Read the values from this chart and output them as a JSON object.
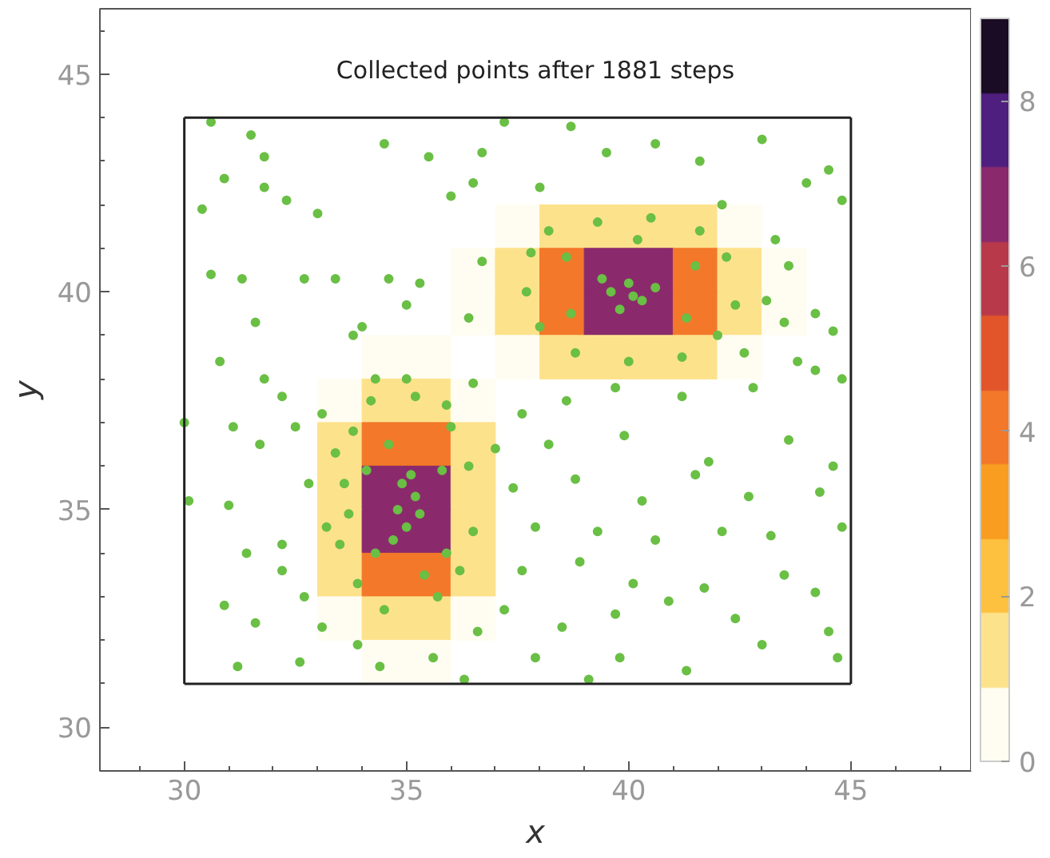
{
  "chart_data": {
    "type": "scatter",
    "title": "Collected points after 1881 steps",
    "xlabel": "x",
    "ylabel": "y",
    "xlim": [
      28.1,
      47.7
    ],
    "ylim": [
      29.0,
      46.5
    ],
    "xticks": [
      30,
      35,
      40,
      45
    ],
    "yticks": [
      30,
      35,
      40,
      45
    ],
    "clim": [
      0,
      9
    ],
    "cticks": [
      0,
      2,
      4,
      6,
      8
    ],
    "series": [
      {
        "marker": "square",
        "colors": [
          "#fffdf2",
          "#fde28c",
          "#fde28c",
          "#fde28c",
          "#fde28c",
          "#fffdf2",
          "#fffdf2",
          "#fde28c",
          "#f3782a",
          "#8a2a6c",
          "#8a2a6c",
          "#f3782a",
          "#fde28c",
          "#fffdf2",
          "#fffdf2",
          "#fde28c",
          "#f3782a",
          "#8a2a6c",
          "#8a2a6c",
          "#f3782a",
          "#fde28c",
          "#fffdf2",
          "#fffdf2",
          "#fde28c",
          "#fde28c",
          "#fde28c",
          "#fde28c",
          "#fffdf2",
          "#fffdf2",
          "#fffdf2",
          "#fffdf2",
          "#fde28c",
          "#fde28c",
          "#fffdf2",
          "#fde28c",
          "#f3782a",
          "#f3782a",
          "#fde28c",
          "#fde28c",
          "#8a2a6c",
          "#8a2a6c",
          "#fde28c",
          "#fde28c",
          "#8a2a6c",
          "#8a2a6c",
          "#fde28c",
          "#fde28c",
          "#f3782a",
          "#f3782a",
          "#fde28c",
          "#fffdf2",
          "#fde28c",
          "#fde28c",
          "#fffdf2",
          "#fffdf2",
          "#fffdf2"
        ],
        "x": [
          37.5,
          38.5,
          39.5,
          40.5,
          41.5,
          42.5,
          36.5,
          37.5,
          38.5,
          39.5,
          40.5,
          41.5,
          42.5,
          43.5,
          36.5,
          37.5,
          38.5,
          39.5,
          40.5,
          41.5,
          42.5,
          43.5,
          37.5,
          38.5,
          39.5,
          40.5,
          41.5,
          42.5,
          34.5,
          35.5,
          33.5,
          34.5,
          35.5,
          36.5,
          33.5,
          34.5,
          35.5,
          36.5,
          33.5,
          34.5,
          35.5,
          36.5,
          33.5,
          34.5,
          35.5,
          36.5,
          33.5,
          34.5,
          35.5,
          36.5,
          33.5,
          34.5,
          35.5,
          36.5,
          34.5,
          35.5
        ],
        "values": [
          41.5,
          41.5,
          41.5,
          41.5,
          41.5,
          41.5,
          40.5,
          40.5,
          40.5,
          40.5,
          40.5,
          40.5,
          40.5,
          40.5,
          39.5,
          39.5,
          39.5,
          39.5,
          39.5,
          39.5,
          39.5,
          39.5,
          38.5,
          38.5,
          38.5,
          38.5,
          38.5,
          38.5,
          38.5,
          38.5,
          37.5,
          37.5,
          37.5,
          37.5,
          36.5,
          36.5,
          36.5,
          36.5,
          35.5,
          35.5,
          35.5,
          35.5,
          34.5,
          34.5,
          34.5,
          34.5,
          33.5,
          33.5,
          33.5,
          33.5,
          32.5,
          32.5,
          32.5,
          32.5,
          31.5,
          31.5
        ],
        "cvalues": [
          0.3,
          1.0,
          1.8,
          1.8,
          1.0,
          0.3,
          0.2,
          1.2,
          3.9,
          7.0,
          7.0,
          3.9,
          1.2,
          0.2,
          0.2,
          1.2,
          3.9,
          7.0,
          7.0,
          3.9,
          1.2,
          0.2,
          0.3,
          1.0,
          1.8,
          1.8,
          1.0,
          0.3,
          0.2,
          0.2,
          0.3,
          1.2,
          1.2,
          0.3,
          1.0,
          3.9,
          3.9,
          1.0,
          1.8,
          7.0,
          7.0,
          1.8,
          1.8,
          7.0,
          7.0,
          1.8,
          1.0,
          3.9,
          3.9,
          1.0,
          0.3,
          1.2,
          1.2,
          0.3,
          0.2,
          0.2
        ]
      },
      {
        "marker": "circle",
        "color": "#6abf45",
        "x": [
          30.6,
          31.5,
          31.8,
          30.9,
          31.8,
          30.4,
          32.3,
          33.0,
          31.3,
          30.6,
          32.7,
          33.4,
          34.6,
          35.3,
          35.0,
          36.4,
          36.7,
          36.5,
          34.5,
          35.5,
          36.7,
          36.0,
          30.8,
          31.6,
          33.8,
          34.0,
          31.8,
          34.3,
          35.0,
          35.9,
          36.5,
          30.0,
          31.1,
          31.7,
          32.5,
          33.1,
          32.2,
          37.2,
          38.7,
          39.5,
          38.0,
          40.6,
          41.6,
          43.0,
          44.0,
          44.5,
          44.8,
          42.1,
          43.3,
          43.6,
          44.2,
          44.6,
          43.1,
          43.5,
          42.6,
          44.8,
          43.8,
          37.6,
          38.6,
          39.7,
          41.2,
          42.8,
          44.2,
          37.0,
          38.2,
          39.9,
          41.8,
          43.6,
          44.6,
          37.4,
          38.8,
          40.3,
          41.5,
          42.7,
          44.3,
          37.9,
          39.3,
          40.6,
          42.1,
          43.2,
          44.8,
          37.6,
          38.9,
          40.1,
          41.7,
          43.5,
          44.2,
          37.2,
          38.5,
          39.7,
          40.9,
          42.4,
          44.5,
          37.9,
          39.8,
          41.3,
          43.0,
          44.7,
          39.1,
          30.1,
          31.0,
          31.4,
          32.2,
          31.6,
          30.9,
          32.7,
          33.1,
          31.2,
          32.6,
          33.9,
          34.4,
          35.6,
          36.6,
          36.3,
          32.8,
          33.2,
          32.2,
          33.7,
          33.4,
          33.8,
          34.2,
          35.2,
          36.0,
          36.4,
          36.5,
          36.2,
          35.7,
          34.5,
          33.9,
          33.5,
          33.6,
          34.1,
          35.8,
          35.9,
          34.3,
          34.6,
          35.4,
          34.8,
          35.2,
          35.0,
          34.9,
          35.3,
          35.1,
          34.7,
          37.8,
          38.2,
          39.3,
          40.5,
          41.6,
          42.2,
          42.4,
          42.0,
          41.2,
          40.0,
          38.8,
          38.0,
          37.7,
          38.6,
          41.5,
          41.3,
          38.7,
          40.2,
          39.6,
          40.0,
          40.3,
          39.8,
          40.6,
          39.4,
          40.1
        ],
        "values": [
          43.9,
          43.6,
          43.1,
          42.6,
          42.4,
          41.9,
          42.1,
          41.8,
          40.3,
          40.4,
          40.3,
          40.3,
          40.3,
          40.2,
          39.7,
          39.4,
          40.7,
          42.5,
          43.4,
          43.1,
          43.2,
          42.2,
          38.4,
          39.3,
          39.0,
          39.2,
          38.0,
          38.0,
          38.0,
          37.4,
          37.9,
          37.0,
          36.9,
          36.5,
          36.9,
          37.2,
          37.6,
          43.9,
          43.8,
          43.2,
          42.4,
          43.4,
          43.0,
          43.5,
          42.5,
          42.8,
          42.1,
          42.0,
          41.2,
          40.6,
          39.5,
          39.1,
          39.8,
          39.3,
          38.6,
          38.0,
          38.4,
          37.2,
          37.5,
          37.8,
          37.6,
          37.8,
          38.2,
          36.4,
          36.5,
          36.7,
          36.1,
          36.6,
          36.0,
          35.5,
          35.7,
          35.2,
          35.8,
          35.3,
          35.4,
          34.6,
          34.5,
          34.3,
          34.5,
          34.4,
          34.6,
          33.6,
          33.8,
          33.3,
          33.2,
          33.5,
          33.1,
          32.7,
          32.3,
          32.6,
          32.9,
          32.5,
          32.2,
          31.6,
          31.6,
          31.3,
          31.9,
          31.6,
          31.1,
          35.2,
          35.1,
          34.0,
          33.6,
          32.4,
          32.8,
          33.0,
          32.3,
          31.4,
          31.5,
          31.9,
          31.4,
          31.6,
          32.2,
          31.1,
          35.6,
          34.6,
          34.2,
          34.9,
          36.3,
          36.8,
          37.5,
          37.6,
          36.9,
          36.0,
          34.5,
          33.6,
          33.0,
          32.7,
          33.3,
          34.2,
          35.6,
          35.9,
          35.9,
          34.0,
          34.0,
          36.5,
          33.5,
          35.0,
          35.3,
          34.6,
          35.6,
          34.9,
          35.8,
          34.3,
          40.9,
          41.4,
          41.6,
          41.7,
          41.4,
          40.8,
          39.7,
          39.0,
          38.5,
          38.4,
          38.6,
          39.2,
          40.0,
          40.8,
          40.6,
          39.4,
          39.5,
          41.2,
          40.0,
          40.2,
          39.8,
          39.6,
          40.1,
          40.3,
          39.9
        ]
      },
      {
        "type": "line",
        "marker": "none",
        "color": "#222222",
        "x": [
          30,
          45
        ],
        "values": [
          31,
          31
        ]
      },
      {
        "type": "line",
        "marker": "none",
        "color": "#222222",
        "x": [
          30,
          45
        ],
        "values": [
          44,
          44
        ]
      },
      {
        "type": "line",
        "marker": "none",
        "color": "#222222",
        "x": [
          30,
          30
        ],
        "values": [
          31,
          44
        ]
      },
      {
        "type": "line",
        "marker": "none",
        "color": "#222222",
        "x": [
          45,
          45
        ],
        "values": [
          31,
          44
        ]
      }
    ]
  }
}
